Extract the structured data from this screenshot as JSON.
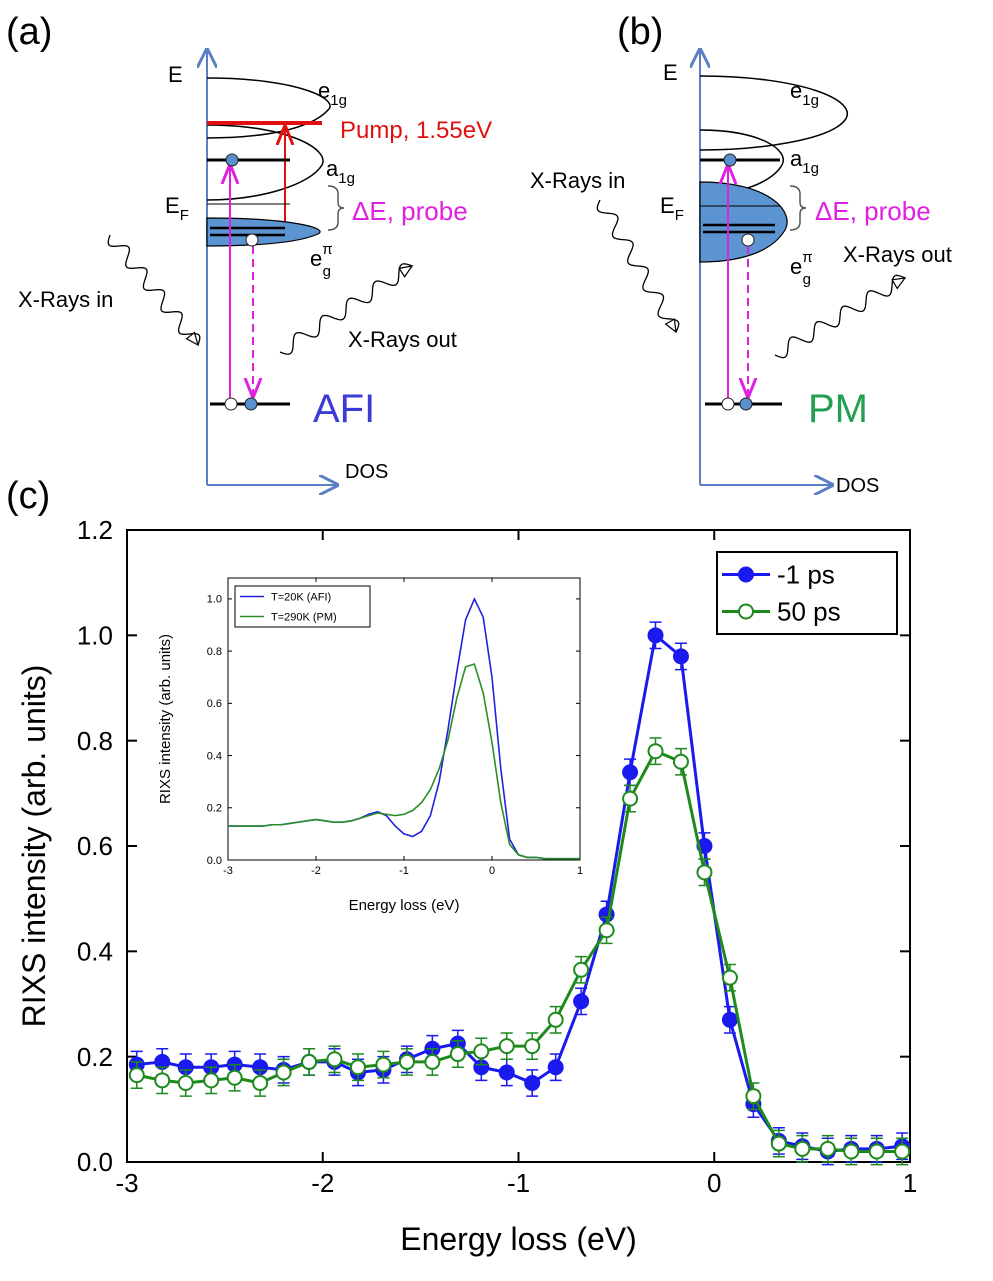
{
  "panel_a": {
    "label": "(a)",
    "energy": "E",
    "e1g": {
      "base": "e",
      "sub": "1g"
    },
    "pump": "Pump, 1.55eV",
    "a1g": {
      "base": "a",
      "sub": "1g"
    },
    "ef": {
      "base": "E",
      "sub": "F"
    },
    "probe": "ΔE, probe",
    "epig": {
      "base": "e",
      "sup": "π",
      "sub": "g"
    },
    "xrays_in": "X-Rays in",
    "xrays_out": "X-Rays out",
    "phase": "AFI",
    "dos": "DOS"
  },
  "panel_b": {
    "label": "(b)",
    "energy": "E",
    "e1g": {
      "base": "e",
      "sub": "1g"
    },
    "a1g": {
      "base": "a",
      "sub": "1g"
    },
    "xrays_in": "X-Rays in",
    "ef": {
      "base": "E",
      "sub": "F"
    },
    "probe": "ΔE, probe",
    "epig": {
      "base": "e",
      "sup": "π",
      "sub": "g"
    },
    "xrays_out": "X-Rays out",
    "phase": "PM",
    "dos": "DOS"
  },
  "panel_c": {
    "label": "(c)"
  },
  "chart_data": [
    {
      "type": "line",
      "x_label": "Energy loss (eV)",
      "y_label": "RIXS intensity (arb. units)",
      "x": [
        -2.95,
        -2.82,
        -2.7,
        -2.57,
        -2.45,
        -2.32,
        -2.2,
        -2.07,
        -1.94,
        -1.82,
        -1.69,
        -1.57,
        -1.44,
        -1.31,
        -1.19,
        -1.06,
        -0.93,
        -0.81,
        -0.68,
        -0.55,
        -0.43,
        -0.3,
        -0.17,
        -0.05,
        0.08,
        0.2,
        0.33,
        0.45,
        0.58,
        0.7,
        0.83,
        0.96
      ],
      "series": [
        {
          "name": "-1 ps",
          "color": "#1a1aee",
          "marker": "filled",
          "error": 0.025,
          "values": [
            0.185,
            0.19,
            0.18,
            0.18,
            0.185,
            0.18,
            0.175,
            0.19,
            0.19,
            0.17,
            0.175,
            0.195,
            0.215,
            0.225,
            0.18,
            0.17,
            0.15,
            0.18,
            0.305,
            0.47,
            0.74,
            1.0,
            0.96,
            0.6,
            0.27,
            0.11,
            0.04,
            0.03,
            0.02,
            0.025,
            0.025,
            0.03
          ]
        },
        {
          "name": "50 ps",
          "color": "#1e8a1e",
          "marker": "open",
          "error": 0.025,
          "values": [
            0.165,
            0.155,
            0.15,
            0.155,
            0.16,
            0.15,
            0.17,
            0.19,
            0.195,
            0.18,
            0.185,
            0.19,
            0.19,
            0.205,
            0.21,
            0.22,
            0.22,
            0.27,
            0.365,
            0.44,
            0.69,
            0.78,
            0.76,
            0.55,
            0.35,
            0.125,
            0.035,
            0.025,
            0.025,
            0.02,
            0.02,
            0.02
          ]
        }
      ],
      "xlim": [
        -3,
        1
      ],
      "ylim": [
        0,
        1.2
      ],
      "xticks": [
        -3,
        -2,
        -1,
        0,
        1
      ],
      "yticks": [
        {
          "value": 0,
          "label": "0.0"
        },
        0.2,
        0.4,
        0.6,
        0.8,
        {
          "value": 1,
          "label": "1.0"
        },
        1.2
      ],
      "legend": "upper right"
    },
    {
      "type": "line",
      "x_label": "Energy loss (eV)",
      "y_label": "RIXS intensity (arb. units)",
      "x": [
        -3,
        -2.9,
        -2.8,
        -2.7,
        -2.6,
        -2.5,
        -2.4,
        -2.3,
        -2.2,
        -2.1,
        -2,
        -1.9,
        -1.8,
        -1.7,
        -1.6,
        -1.5,
        -1.4,
        -1.3,
        -1.2,
        -1.1,
        -1,
        -0.9,
        -0.8,
        -0.7,
        -0.6,
        -0.5,
        -0.4,
        -0.3,
        -0.2,
        -0.1,
        0,
        0.1,
        0.2,
        0.3,
        0.4,
        0.5,
        0.6,
        0.7,
        0.8,
        0.9,
        1
      ],
      "series": [
        {
          "name": "T=20K (AFI)",
          "color": "#2222dd",
          "values": [
            0.13,
            0.13,
            0.13,
            0.13,
            0.13,
            0.135,
            0.135,
            0.14,
            0.145,
            0.15,
            0.155,
            0.15,
            0.145,
            0.145,
            0.15,
            0.16,
            0.175,
            0.185,
            0.17,
            0.13,
            0.1,
            0.09,
            0.11,
            0.17,
            0.3,
            0.5,
            0.72,
            0.92,
            1.0,
            0.93,
            0.7,
            0.35,
            0.08,
            0.02,
            0.01,
            0.01,
            0.005,
            0.005,
            0.005,
            0.005,
            0.005
          ]
        },
        {
          "name": "T=290K (PM)",
          "color": "#2a8f2a",
          "values": [
            0.13,
            0.13,
            0.13,
            0.13,
            0.13,
            0.135,
            0.135,
            0.14,
            0.145,
            0.15,
            0.155,
            0.15,
            0.145,
            0.145,
            0.15,
            0.16,
            0.17,
            0.18,
            0.175,
            0.17,
            0.175,
            0.19,
            0.22,
            0.27,
            0.35,
            0.46,
            0.62,
            0.74,
            0.75,
            0.64,
            0.45,
            0.22,
            0.06,
            0.02,
            0.01,
            0.01,
            0.005,
            0.005,
            0.005,
            0.005,
            0.005
          ]
        }
      ],
      "xlim": [
        -3,
        1
      ],
      "ylim": [
        0,
        1.08
      ],
      "xticks": [
        -3,
        -2,
        -1,
        0,
        1
      ],
      "yticks": [
        {
          "value": 0,
          "label": "0.0"
        },
        0.2,
        0.4,
        0.6,
        0.8,
        {
          "value": 1,
          "label": "1.0"
        }
      ],
      "legend": "upper left"
    }
  ]
}
